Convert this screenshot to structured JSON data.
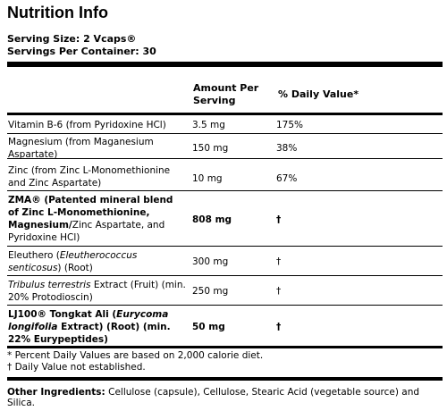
{
  "title": "Nutrition Info",
  "serving_size": "Serving Size: 2 Vcaps®",
  "servings_per_container": "Servings Per Container: 30",
  "columns": {
    "amount": "Amount Per Serving",
    "dv": "% Daily Value*"
  },
  "rows": [
    {
      "name": "Vitamin B-6 (from Pyridoxine HCl)",
      "amount": "3.5 mg",
      "dv": "175%"
    },
    {
      "name": "Magnesium (from Maganesium Aspartate)",
      "amount": "150 mg",
      "dv": "38%"
    },
    {
      "name": "Zinc (from Zinc L-Monomethionine and Zinc Aspartate)",
      "amount": "10 mg",
      "dv": "67%"
    },
    {
      "name_bold": "ZMA® (Patented mineral blend of Zinc L-Monomethionine, Magnesium/",
      "name_rest": "Zinc Aspartate, and Pyridoxine HCl)",
      "amount": "808 mg",
      "dv": "†"
    },
    {
      "name_pre": "Eleuthero (",
      "name_italic": "Eleutherococcus senticosus",
      "name_post": ") (Root)",
      "amount": "300 mg",
      "dv": "†"
    },
    {
      "name_italic": "Tribulus terrestris",
      "name_post": " Extract (Fruit) (min. 20% Protodioscin)",
      "amount": "250 mg",
      "dv": "†"
    },
    {
      "name_pre": "LJ100® Tongkat Ali (",
      "name_italic": "Eurycoma longifolia",
      "name_post": " Extract) (Root) (min. 22% Eurypeptides)",
      "amount": "50 mg",
      "dv": "†"
    }
  ],
  "footnotes": [
    "* Percent Daily Values are based on 2,000 calorie diet.",
    "† Daily Value not established."
  ],
  "other_ingredients": {
    "label": "Other Ingredients:",
    "text": "Cellulose (capsule), Cellulose, Stearic Acid (vegetable source) and Silica."
  }
}
